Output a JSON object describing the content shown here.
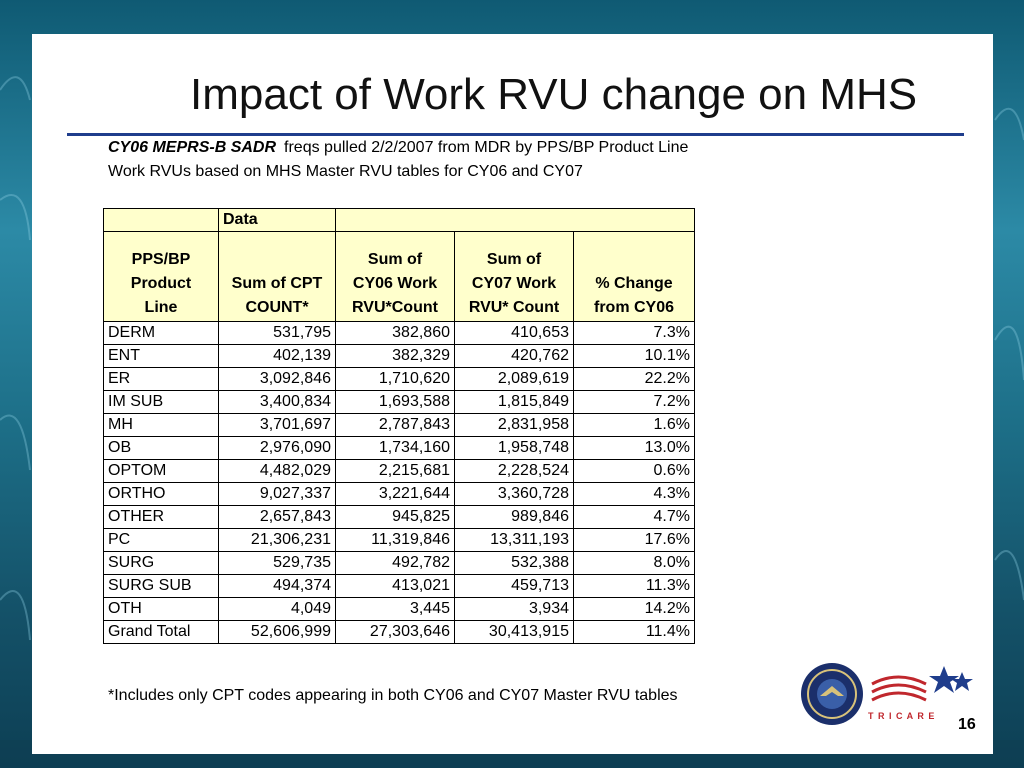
{
  "slide": {
    "title": "Impact of Work RVU change on MHS",
    "source_bold": "CY06 MEPRS-B SADR",
    "source_rest": "freqs pulled 2/2/2007 from MDR by PPS/BP Product Line",
    "basis": "Work RVUs based on MHS Master RVU tables for CY06 and CY07",
    "footnote": "*Includes only CPT codes appearing in both CY06 and CY07 Master RVU tables",
    "page_number": "16",
    "logo_text": "T R I C A R E"
  },
  "table": {
    "pivot_header": "Data",
    "columns": [
      [
        "PPS/BP",
        "Product",
        "Line"
      ],
      [
        "Sum of CPT",
        "COUNT*"
      ],
      [
        "Sum of",
        "CY06 Work",
        "RVU*Count"
      ],
      [
        "Sum of",
        "CY07 Work",
        "RVU* Count"
      ],
      [
        "% Change",
        "from CY06"
      ]
    ],
    "rows": [
      [
        "DERM",
        "531,795",
        "382,860",
        "410,653",
        "7.3%"
      ],
      [
        "ENT",
        "402,139",
        "382,329",
        "420,762",
        "10.1%"
      ],
      [
        "ER",
        "3,092,846",
        "1,710,620",
        "2,089,619",
        "22.2%"
      ],
      [
        "IM SUB",
        "3,400,834",
        "1,693,588",
        "1,815,849",
        "7.2%"
      ],
      [
        "MH",
        "3,701,697",
        "2,787,843",
        "2,831,958",
        "1.6%"
      ],
      [
        "OB",
        "2,976,090",
        "1,734,160",
        "1,958,748",
        "13.0%"
      ],
      [
        "OPTOM",
        "4,482,029",
        "2,215,681",
        "2,228,524",
        "0.6%"
      ],
      [
        "ORTHO",
        "9,027,337",
        "3,221,644",
        "3,360,728",
        "4.3%"
      ],
      [
        "OTHER",
        "2,657,843",
        "945,825",
        "989,846",
        "4.7%"
      ],
      [
        "PC",
        "21,306,231",
        "11,319,846",
        "13,311,193",
        "17.6%"
      ],
      [
        "SURG",
        "529,735",
        "492,782",
        "532,388",
        "8.0%"
      ],
      [
        "SURG SUB",
        "494,374",
        "413,021",
        "459,713",
        "11.3%"
      ],
      [
        "OTH",
        "4,049",
        "3,445",
        "3,934",
        "14.2%"
      ],
      [
        "Grand Total",
        "52,606,999",
        "27,303,646",
        "30,413,915",
        "11.4%"
      ]
    ]
  },
  "colors": {
    "header_fill": "#ffffcc",
    "title_rule": "#1f3d8c",
    "background": "#1d6f88"
  }
}
